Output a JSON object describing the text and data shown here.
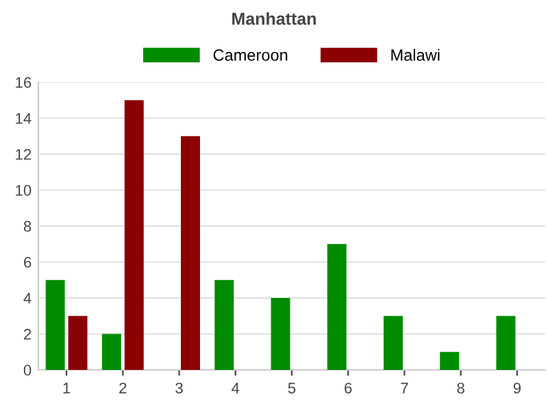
{
  "chart_data": {
    "type": "bar",
    "title": "Manhattan",
    "categories": [
      "1",
      "2",
      "3",
      "4",
      "5",
      "6",
      "7",
      "8",
      "9"
    ],
    "series": [
      {
        "name": "Cameroon",
        "color": "#008c00",
        "values": [
          5,
          2,
          null,
          5,
          4,
          7,
          3,
          1,
          3
        ]
      },
      {
        "name": "Malawi",
        "color": "#8b0000",
        "values": [
          3,
          15,
          13,
          null,
          null,
          null,
          null,
          null,
          null
        ]
      }
    ],
    "ylim": [
      0,
      16
    ],
    "yticks": [
      0,
      2,
      4,
      6,
      8,
      10,
      12,
      14,
      16
    ],
    "grid": "y",
    "legend": "top"
  }
}
